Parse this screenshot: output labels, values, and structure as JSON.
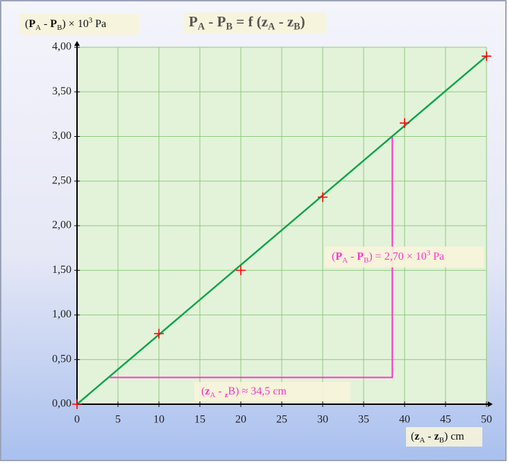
{
  "chart_data": {
    "type": "scatter",
    "title": [
      "P",
      "A",
      " - ",
      "P",
      "B",
      " = f (",
      "z",
      "A",
      " - ",
      "z",
      "B",
      ")"
    ],
    "y_label": [
      "(",
      "P",
      "A",
      " - ",
      "P",
      "B",
      ") × 10",
      "3",
      " Pa"
    ],
    "x_label": [
      "(",
      "z",
      "A",
      " - ",
      "z",
      "B",
      ") cm"
    ],
    "x": [
      0,
      10,
      20,
      30,
      40,
      50
    ],
    "values": [
      0,
      0.79,
      1.5,
      2.32,
      3.15,
      3.9
    ],
    "color": "#ff0000",
    "fit_line": {
      "x": [
        0,
        50
      ],
      "values": [
        0,
        3.9
      ],
      "color": "#11a54a"
    },
    "triangle": {
      "x": [
        4,
        38.5
      ],
      "y": [
        0.3,
        3.0
      ],
      "color": "#ff33cc"
    },
    "annotations": [
      [
        "(",
        "P",
        "A",
        " - ",
        "P",
        "B",
        ") = 2,70 × 10",
        "3",
        " Pa"
      ],
      [
        "(",
        "z",
        "A",
        " - ",
        "z",
        "B",
        ") ≈ 34,5 cm"
      ]
    ],
    "xlim": [
      0,
      50
    ],
    "ylim": [
      0,
      4
    ],
    "xticks": [
      0,
      5,
      10,
      15,
      20,
      25,
      30,
      35,
      40,
      45,
      50
    ],
    "yticks": [
      {
        "value": 0,
        "label": "0,00"
      },
      {
        "value": 0.5,
        "label": "0,50"
      },
      {
        "value": 1,
        "label": "1,00"
      },
      {
        "value": 1.5,
        "label": "1,50"
      },
      {
        "value": 2,
        "label": "2,00"
      },
      {
        "value": 2.5,
        "label": "2,50"
      },
      {
        "value": 3,
        "label": "3,00"
      },
      {
        "value": 3.5,
        "label": "3,50"
      },
      {
        "value": 4,
        "label": "4,00"
      }
    ],
    "grid": true
  }
}
